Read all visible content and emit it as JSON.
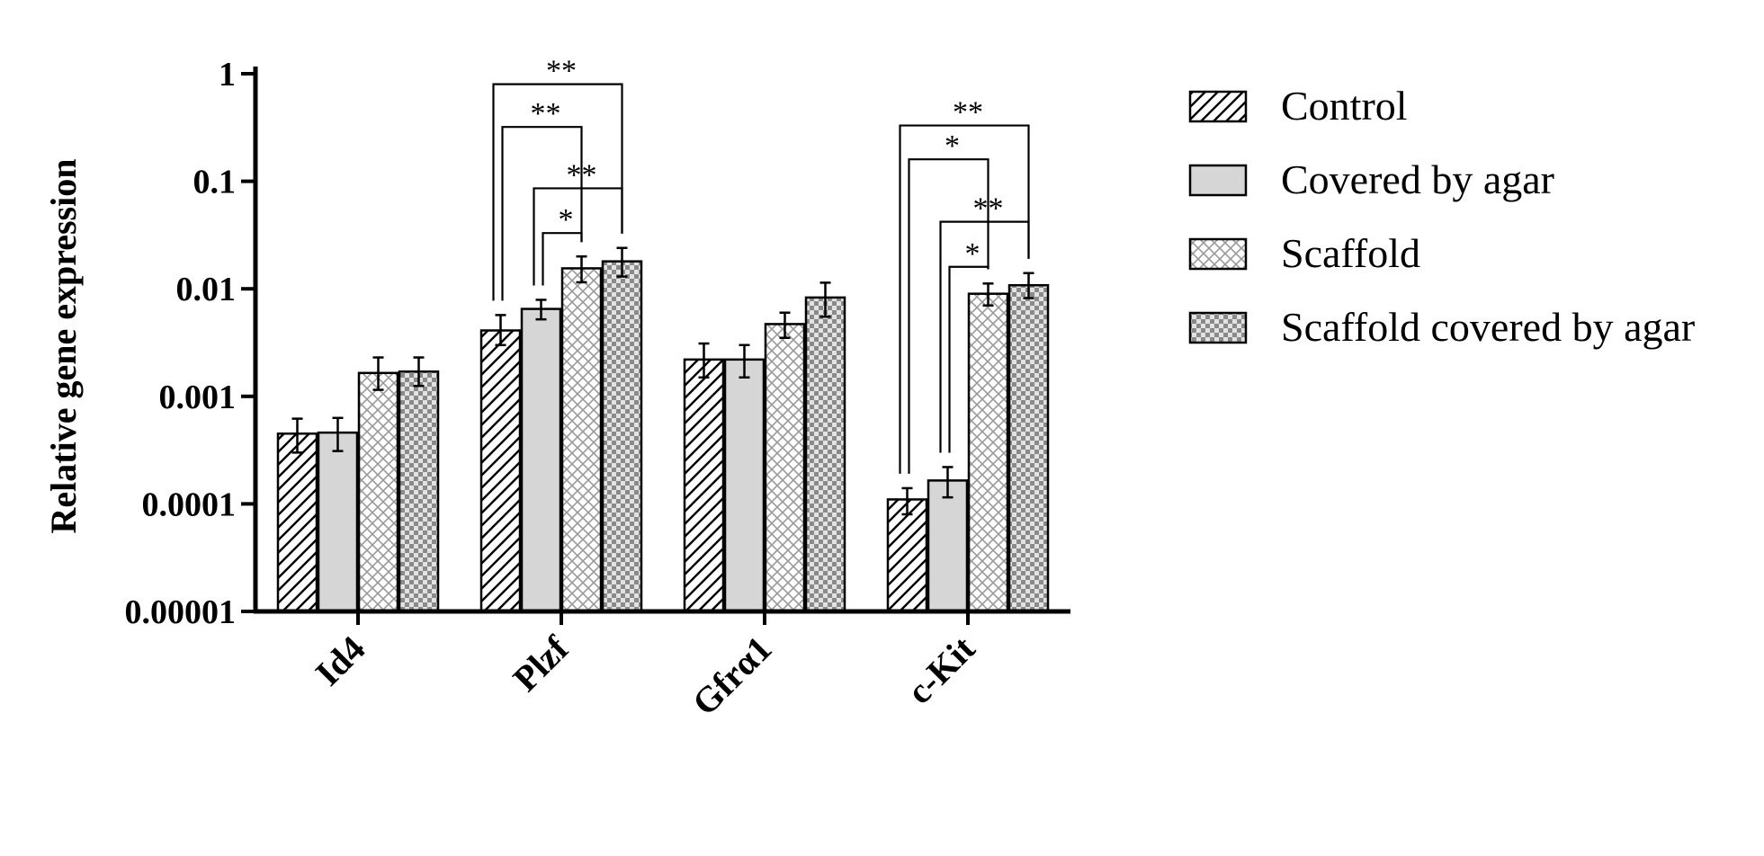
{
  "chart_data": {
    "type": "bar",
    "ylabel": "Relative gene expression",
    "xlabel": "",
    "yscale": "log",
    "ylim": [
      1e-05,
      1
    ],
    "yticks": [
      {
        "value": 1,
        "label": "1"
      },
      {
        "value": 0.1,
        "label": "0.1"
      },
      {
        "value": 0.01,
        "label": "0.01"
      },
      {
        "value": 0.001,
        "label": "0.001"
      },
      {
        "value": 0.0001,
        "label": "0.0001"
      },
      {
        "value": 1e-05,
        "label": "0.00001"
      }
    ],
    "categories": [
      "Id4",
      "Plzf",
      "Gfrα1",
      "c-Kit"
    ],
    "legend_position": "right",
    "series": [
      {
        "name": "Control",
        "pattern": "diagonal-hatch",
        "values": [
          0.00045,
          0.0041,
          0.0022,
          0.00011
        ],
        "err_low": [
          0.0003,
          0.003,
          0.0015,
          8e-05
        ],
        "err_high": [
          0.00062,
          0.0057,
          0.0031,
          0.00014
        ]
      },
      {
        "name": "Covered by agar",
        "pattern": "solid-gray",
        "values": [
          0.00046,
          0.0065,
          0.0022,
          0.000165
        ],
        "err_low": [
          0.00031,
          0.0052,
          0.0015,
          0.000115
        ],
        "err_high": [
          0.00063,
          0.0079,
          0.003,
          0.00022
        ]
      },
      {
        "name": "Scaffold",
        "pattern": "light-crosshatch",
        "values": [
          0.00165,
          0.0155,
          0.0047,
          0.009
        ],
        "err_low": [
          0.00115,
          0.0115,
          0.0035,
          0.007
        ],
        "err_high": [
          0.0023,
          0.02,
          0.006,
          0.0112
        ]
      },
      {
        "name": "Scaffold covered by agar",
        "pattern": "checker",
        "values": [
          0.0017,
          0.018,
          0.0083,
          0.0108
        ],
        "err_low": [
          0.00125,
          0.013,
          0.0055,
          0.0082
        ],
        "err_high": [
          0.0023,
          0.024,
          0.0114,
          0.014
        ]
      }
    ],
    "significance": [
      {
        "category": 1,
        "from": 0,
        "to": 3,
        "label": "**",
        "level": 0.8
      },
      {
        "category": 1,
        "from": 0,
        "to": 2,
        "label": "**",
        "level": 0.32
      },
      {
        "category": 1,
        "from": 1,
        "to": 3,
        "label": "**",
        "level": 0.086
      },
      {
        "category": 1,
        "from": 1,
        "to": 2,
        "label": "*",
        "level": 0.033
      },
      {
        "category": 3,
        "from": 0,
        "to": 3,
        "label": "**",
        "level": 0.33
      },
      {
        "category": 3,
        "from": 0,
        "to": 2,
        "label": "*",
        "level": 0.16
      },
      {
        "category": 3,
        "from": 1,
        "to": 3,
        "label": "**",
        "level": 0.042
      },
      {
        "category": 3,
        "from": 1,
        "to": 2,
        "label": "*",
        "level": 0.016
      }
    ]
  }
}
